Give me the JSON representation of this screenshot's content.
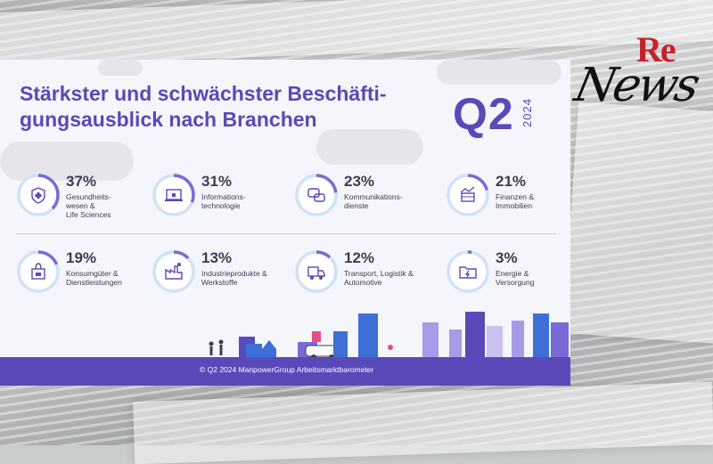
{
  "card": {
    "title_line1": "Stärkster und schwächster Beschäfti-",
    "title_line2": "gungsausblick nach Branchen",
    "quarter": "Q2",
    "year": "2024",
    "footer": "© Q2 2024 ManpowerGroup Arbeitsmarktbarometer"
  },
  "logo": {
    "re": "Re",
    "news": "News"
  },
  "colors": {
    "primary": "#5a49b8",
    "ring_track": "#cfe3f5",
    "ring_fill": "#7a6ad6",
    "icon": "#5a49b8"
  },
  "sectors": [
    {
      "value": 37,
      "percent": "37%",
      "label_lines": [
        "Gesundheits-",
        "wesen &",
        "Life Sciences"
      ],
      "icon": "shield-cross-icon"
    },
    {
      "value": 31,
      "percent": "31%",
      "label_lines": [
        "Informations-",
        "technologie"
      ],
      "icon": "laptop-lock-icon"
    },
    {
      "value": 23,
      "percent": "23%",
      "label_lines": [
        "Kommunikations-",
        "dienste"
      ],
      "icon": "chat-bubbles-icon"
    },
    {
      "value": 21,
      "percent": "21%",
      "label_lines": [
        "Finanzen &",
        "Immobilien"
      ],
      "icon": "finance-chart-icon"
    },
    {
      "value": 19,
      "percent": "19%",
      "label_lines": [
        "Konsumgüter &",
        "Dienstleistungen"
      ],
      "icon": "shopping-bag-icon"
    },
    {
      "value": 13,
      "percent": "13%",
      "label_lines": [
        "Industrieprodukte &",
        "Werkstoffe"
      ],
      "icon": "factory-icon"
    },
    {
      "value": 12,
      "percent": "12%",
      "label_lines": [
        "Transport, Logistik &",
        "Automotive"
      ],
      "icon": "truck-icon"
    },
    {
      "value": 3,
      "percent": "3%",
      "label_lines": [
        "Energie &",
        "Versorgung"
      ],
      "icon": "energy-folder-icon"
    }
  ]
}
